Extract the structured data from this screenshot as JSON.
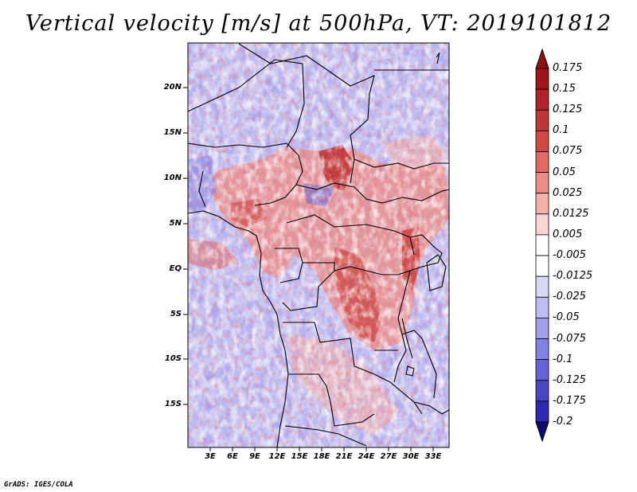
{
  "title": "Vertical velocity [m/s] at 500hPa, VT: 2019101812",
  "credit": "GrADS: IGES/COLA",
  "map": {
    "variable": "Vertical velocity",
    "units": "m/s",
    "level": "500hPa",
    "valid_time": "2019101812",
    "lat_labels": [
      "20N",
      "15N",
      "10N",
      "5N",
      "EQ",
      "5S",
      "10S",
      "15S"
    ],
    "lon_labels": [
      "3E",
      "6E",
      "9E",
      "12E",
      "15E",
      "18E",
      "21E",
      "24E",
      "27E",
      "30E",
      "33E"
    ]
  },
  "colorbar": {
    "labels": [
      "0.175",
      "0.15",
      "0.125",
      "0.1",
      "0.075",
      "0.05",
      "0.025",
      "0.0125",
      "0.005",
      "-0.005",
      "-0.0125",
      "-0.025",
      "-0.05",
      "-0.075",
      "-0.1",
      "-0.125",
      "-0.175",
      "-0.2"
    ],
    "colors": [
      "#a0141a",
      "#b4232a",
      "#c43432",
      "#d34a45",
      "#e06a62",
      "#eb8c85",
      "#f5b1aa",
      "#fbd5d0",
      "#ffffff",
      "#ffffff",
      "#d8d8fb",
      "#bcbcf6",
      "#a0a0ef",
      "#8282e6",
      "#6464da",
      "#4646c9",
      "#2a2ab2",
      "#14148a"
    ],
    "over_color": "#901010",
    "under_color": "#0c0c70"
  }
}
